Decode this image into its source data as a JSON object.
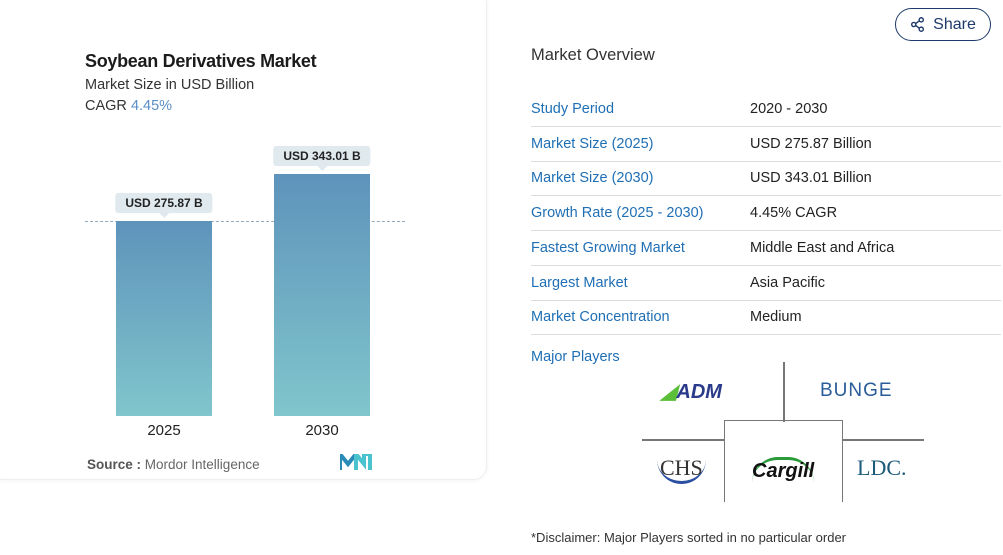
{
  "card": {
    "title": "Soybean Derivatives Market",
    "subtitle": "Market Size in USD Billion",
    "cagr_label": "CAGR",
    "cagr_value": "4.45%",
    "source_label": "Source :",
    "source_value": "Mordor Intelligence"
  },
  "chart_data": {
    "type": "bar",
    "categories": [
      "2025",
      "2030"
    ],
    "values": [
      275.87,
      343.01
    ],
    "labels": [
      "USD 275.87 B",
      "USD 343.01 B"
    ],
    "ylim": [
      0,
      343.01
    ],
    "reference_line": 275.87,
    "colors": [
      "#5e93bb",
      "#80c6cc"
    ]
  },
  "share": {
    "label": "Share",
    "icon": "share-icon"
  },
  "overview": {
    "title": "Market Overview",
    "rows": [
      {
        "k": "Study Period",
        "v": "2020 - 2030"
      },
      {
        "k": "Market Size (2025)",
        "v": "USD 275.87 Billion"
      },
      {
        "k": "Market Size (2030)",
        "v": "USD 343.01 Billion"
      },
      {
        "k": "Growth Rate (2025 - 2030)",
        "v": "4.45% CAGR"
      },
      {
        "k": "Fastest Growing Market",
        "v": "Middle East and Africa"
      },
      {
        "k": "Largest Market",
        "v": "Asia Pacific"
      },
      {
        "k": "Market Concentration",
        "v": "Medium"
      }
    ],
    "players_label": "Major Players",
    "players": [
      "ADM",
      "BUNGE",
      "CHS",
      "Cargill",
      "LDC."
    ],
    "disclaimer": "*Disclaimer: Major Players sorted in no particular order"
  }
}
